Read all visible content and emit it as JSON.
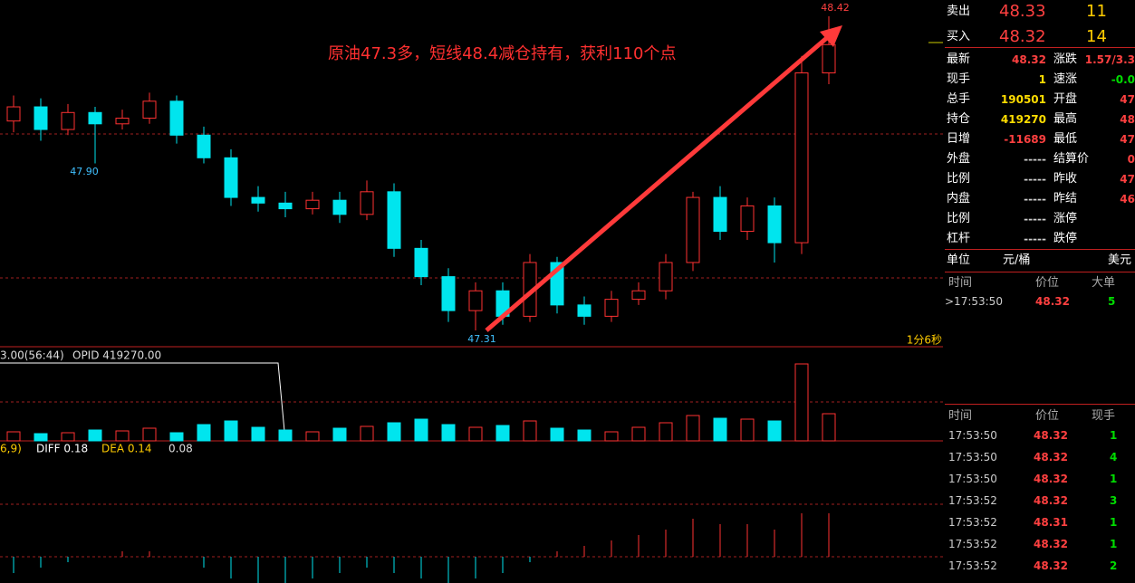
{
  "chart_data": {
    "type": "candlestick",
    "annotation": "原油47.3多，短线48.4减仓持有，获利110个点",
    "extreme_labels": [
      "48.42",
      "47.90",
      "47.31"
    ],
    "period": "1分6秒",
    "open": [
      48.05,
      48.1,
      48.02,
      48.08,
      48.04,
      48.06,
      48.12,
      48.0,
      47.92,
      47.78,
      47.76,
      47.74,
      47.77,
      47.72,
      47.8,
      47.6,
      47.5,
      47.38,
      47.45,
      47.36,
      47.55,
      47.4,
      47.36,
      47.42,
      47.45,
      47.55,
      47.78,
      47.66,
      47.75,
      47.62,
      48.22
    ],
    "high": [
      48.14,
      48.13,
      48.11,
      48.1,
      48.09,
      48.15,
      48.14,
      48.03,
      47.95,
      47.82,
      47.8,
      47.8,
      47.8,
      47.84,
      47.83,
      47.63,
      47.53,
      47.48,
      47.48,
      47.58,
      47.57,
      47.43,
      47.45,
      47.48,
      47.58,
      47.8,
      47.82,
      47.78,
      47.78,
      48.28,
      48.42
    ],
    "low": [
      48.01,
      47.98,
      48.0,
      47.9,
      48.02,
      48.04,
      47.97,
      47.9,
      47.75,
      47.73,
      47.71,
      47.72,
      47.69,
      47.7,
      47.57,
      47.47,
      47.34,
      47.31,
      47.33,
      47.34,
      47.37,
      47.33,
      47.34,
      47.4,
      47.42,
      47.52,
      47.63,
      47.63,
      47.55,
      47.58,
      48.18
    ],
    "close": [
      48.1,
      48.02,
      48.08,
      48.04,
      48.06,
      48.12,
      48.0,
      47.92,
      47.78,
      47.76,
      47.74,
      47.77,
      47.72,
      47.8,
      47.6,
      47.5,
      47.38,
      47.45,
      47.36,
      47.55,
      47.4,
      47.36,
      47.42,
      47.45,
      47.55,
      47.78,
      47.66,
      47.75,
      47.62,
      48.22,
      48.32
    ],
    "volume_legend": "3.00(56:44)",
    "opid": "OPID 419270.00",
    "volume": [
      10,
      8,
      9,
      12,
      11,
      14,
      9,
      18,
      22,
      15,
      12,
      10,
      14,
      16,
      20,
      24,
      18,
      15,
      17,
      22,
      14,
      12,
      10,
      15,
      20,
      28,
      25,
      24,
      22,
      85,
      30
    ],
    "macd_params": "6,9)",
    "diff": "DIFF 0.18",
    "dea": "DEA 0.14",
    "macd": "0.08",
    "macd_hist": [
      -0.03,
      -0.02,
      -0.01,
      0,
      0.01,
      0.01,
      0,
      -0.02,
      -0.04,
      -0.05,
      -0.05,
      -0.04,
      -0.03,
      -0.02,
      -0.03,
      -0.04,
      -0.05,
      -0.04,
      -0.03,
      -0.01,
      0.01,
      0.02,
      0.03,
      0.04,
      0.05,
      0.07,
      0.06,
      0.06,
      0.05,
      0.08,
      0.08
    ]
  },
  "quote": {
    "ask": {
      "label": "卖出",
      "price": "48.33",
      "size": "11"
    },
    "bid": {
      "label": "买入",
      "price": "48.32",
      "size": "14"
    }
  },
  "stats": [
    {
      "l": "最新",
      "v": "48.32",
      "r": "涨跌",
      "rv": "1.57/3.3"
    },
    {
      "l": "现手",
      "v": "1",
      "r": "速涨",
      "rv": "-0.0"
    },
    {
      "l": "总手",
      "v": "190501",
      "r": "开盘",
      "rv": "47"
    },
    {
      "l": "持仓",
      "v": "419270",
      "r": "最高",
      "rv": "48"
    },
    {
      "l": "日增",
      "v": "-11689",
      "r": "最低",
      "rv": "47"
    },
    {
      "l": "外盘",
      "v": "-----",
      "r": "结算价",
      "rv": "0"
    },
    {
      "l": "比例",
      "v": "-----",
      "r": "昨收",
      "rv": "47"
    },
    {
      "l": "内盘",
      "v": "-----",
      "r": "昨结",
      "rv": "46"
    },
    {
      "l": "比例",
      "v": "-----",
      "r": "涨停"
    },
    {
      "l": "杠杆",
      "v": "-----",
      "r": "跌停"
    }
  ],
  "unit": {
    "label": "单位",
    "value": "元/桶",
    "currency": "美元"
  },
  "big_orders": {
    "header": [
      "时间",
      "价位",
      "大单"
    ],
    "rows": [
      [
        ">17:53:50",
        "48.32",
        "5"
      ]
    ]
  },
  "ticks": {
    "header": [
      "时间",
      "价位",
      "现手"
    ],
    "rows": [
      [
        "17:53:50",
        "48.32",
        "1"
      ],
      [
        "17:53:50",
        "48.32",
        "4"
      ],
      [
        "17:53:50",
        "48.32",
        "1"
      ],
      [
        "17:53:52",
        "48.32",
        "3"
      ],
      [
        "17:53:52",
        "48.31",
        "1"
      ],
      [
        "17:53:52",
        "48.32",
        "1"
      ],
      [
        "17:53:52",
        "48.32",
        "2"
      ]
    ]
  }
}
